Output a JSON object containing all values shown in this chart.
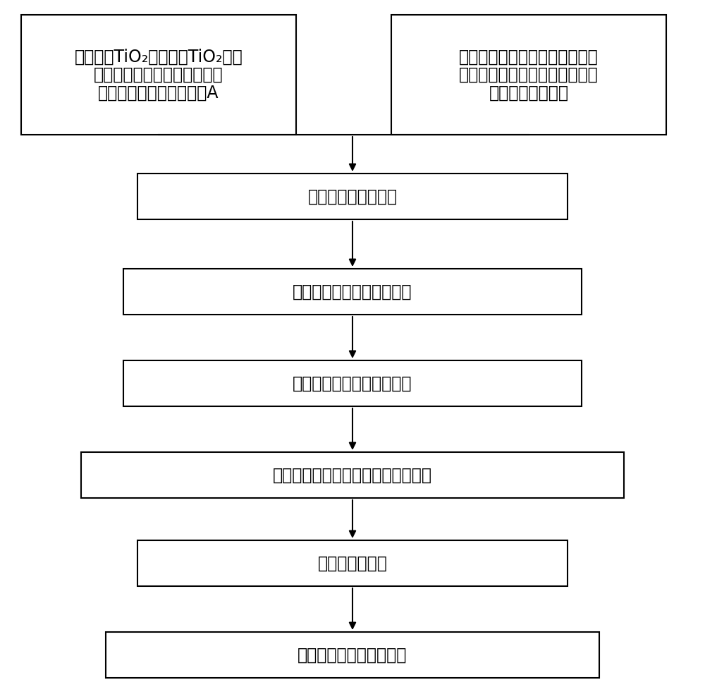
{
  "background_color": "#ffffff",
  "arrow_color": "#000000",
  "top_left_lines": [
    "将纳米级TiO₂及微米级TiO₂，交",
    "联剂及抗静电剂在捩合机中均",
    "匀混炼，制得综合混合物A"
  ],
  "top_right_lines": [
    "选取聚烯烃组合物树脂，交联助",
    "剂，润滑剂，抗氧化剂，紫外线",
    "吸收剂及填充剂等"
  ],
  "center_texts": [
    "导入混合机均匀混合",
    "导入另一台捩合机均匀混炼",
    "导入轧轮机充分交联及胶化",
    "输入胶布机压延成型热溶聚烯烃胶布",
    "急速冷却及定型",
    "制得交联耗候聚烯烃胶布"
  ],
  "figsize": [
    10.0,
    9.91
  ],
  "dpi": 100
}
